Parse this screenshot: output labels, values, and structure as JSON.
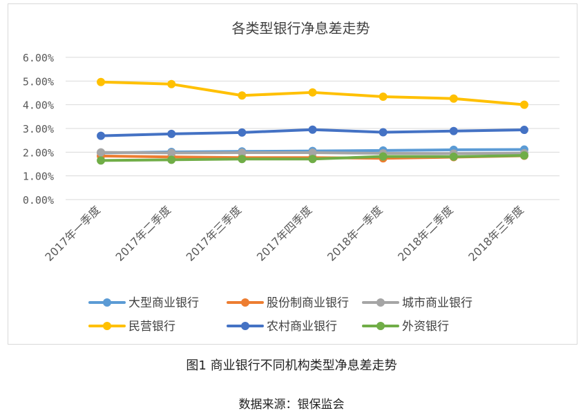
{
  "caption": "图1 商业银行不同机构类型净息差走势",
  "source": "数据来源：银保监会",
  "chart_data": {
    "type": "line",
    "title": "各类型银行净息差走势",
    "categories": [
      "2017年一季度",
      "2017年二季度",
      "2017年三季度",
      "2017年四季度",
      "2018年一季度",
      "2018年二季度",
      "2018年三季度"
    ],
    "yticks": [
      "0.00%",
      "1.00%",
      "2.00%",
      "3.00%",
      "4.00%",
      "5.00%",
      "6.00%"
    ],
    "ylim": [
      0,
      6
    ],
    "grid": true,
    "legend_position": "bottom",
    "series": [
      {
        "name": "大型商业银行",
        "color": "#5b9bd5",
        "values": [
          1.97,
          2.01,
          2.03,
          2.05,
          2.07,
          2.1,
          2.11
        ]
      },
      {
        "name": "股份制商业银行",
        "color": "#ed7d31",
        "values": [
          1.84,
          1.8,
          1.77,
          1.77,
          1.74,
          1.79,
          1.85
        ]
      },
      {
        "name": "城市商业银行",
        "color": "#a5a5a5",
        "values": [
          1.99,
          1.97,
          1.98,
          1.98,
          1.95,
          1.94,
          1.96
        ]
      },
      {
        "name": "民营银行",
        "color": "#ffc000",
        "values": [
          4.96,
          4.87,
          4.39,
          4.52,
          4.34,
          4.26,
          4.0
        ]
      },
      {
        "name": "农村商业银行",
        "color": "#4472c4",
        "values": [
          2.69,
          2.77,
          2.83,
          2.95,
          2.84,
          2.89,
          2.94
        ]
      },
      {
        "name": "外资银行",
        "color": "#70ad47",
        "values": [
          1.65,
          1.68,
          1.71,
          1.71,
          1.82,
          1.81,
          1.86
        ]
      }
    ]
  }
}
